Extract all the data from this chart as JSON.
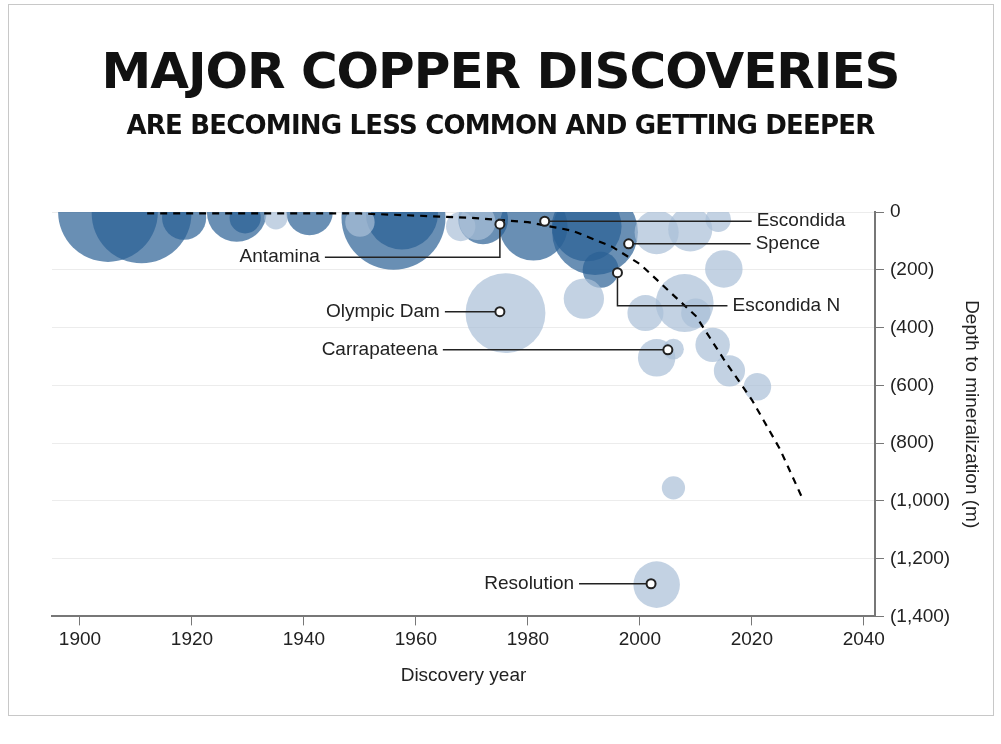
{
  "chart_data": {
    "type": "bubble",
    "title": "MAJOR COPPER DISCOVERIES",
    "subtitle": "ARE BECOMING LESS COMMON AND GETTING DEEPER",
    "xlabel": "Discovery year",
    "ylabel": "Depth to mineralization (m)",
    "xlim": [
      1895,
      2042
    ],
    "xticks": [
      1900,
      1920,
      1940,
      1960,
      1980,
      2000,
      2020,
      2040
    ],
    "ylim": [
      -1400,
      0
    ],
    "yticks": [
      {
        "value": 0,
        "label": "0"
      },
      {
        "value": -200,
        "label": "(200)"
      },
      {
        "value": -400,
        "label": "(400)"
      },
      {
        "value": -600,
        "label": "(600)"
      },
      {
        "value": -800,
        "label": "(800)"
      },
      {
        "value": -1000,
        "label": "(1,000)"
      },
      {
        "value": -1200,
        "label": "(1,200)"
      },
      {
        "value": -1400,
        "label": "(1,400)"
      }
    ],
    "grid": "y",
    "series": [
      {
        "type": "bubble",
        "color": "#2a5f94",
        "x": [
          1905,
          1911,
          1918.6,
          1928,
          1929.5,
          1941,
          1956,
          1957.5,
          1972,
          1981,
          1990.5,
          1992,
          1993
        ],
        "values": [
          0,
          -5,
          -20,
          0,
          -20,
          0,
          -20,
          -5,
          -25,
          -50,
          -50,
          -70,
          -200
        ],
        "sizes": [
          0.92,
          0.92,
          0.18,
          0.33,
          0.09,
          0.2,
          1,
          0.48,
          0.23,
          0.43,
          0.45,
          0.68,
          0.12
        ]
      },
      {
        "type": "bubble",
        "color": "#a9bfd7",
        "x": [
          1935,
          1950,
          1968,
          1971,
          2003,
          2009,
          2014,
          2015,
          1990,
          2001,
          2008,
          1976,
          2003,
          2006,
          2013,
          2016,
          2021,
          2006,
          2003,
          2010
        ],
        "values": [
          -20,
          -35,
          -50,
          -35,
          -70,
          -60,
          -25,
          -197,
          -300,
          -350,
          -315,
          -350,
          -505,
          -475,
          -460,
          -550,
          -605,
          -955,
          -1290,
          -350
        ],
        "sizes": [
          0.05,
          0.08,
          0.08,
          0.12,
          0.18,
          0.18,
          0.06,
          0.13,
          0.15,
          0.12,
          0.31,
          0.59,
          0.13,
          0.04,
          0.11,
          0.09,
          0.07,
          0.05,
          0.2,
          0.08
        ]
      },
      {
        "type": "line",
        "color": "#000000",
        "line_style": "dashed",
        "marker": "none",
        "x": [
          1912,
          1950,
          1970,
          1980,
          1988,
          1995,
          2000,
          2005,
          2010,
          2015,
          2020,
          2025,
          2029
        ],
        "values": [
          -5,
          -5,
          -20,
          -35,
          -65,
          -120,
          -180,
          -270,
          -360,
          -510,
          -650,
          -820,
          -990
        ]
      }
    ],
    "annotations": [
      {
        "text": "Antamina",
        "x": 1975,
        "y": -42
      },
      {
        "text": "Escondida",
        "x": 1983,
        "y": -32
      },
      {
        "text": "Spence",
        "x": 1998,
        "y": -110
      },
      {
        "text": "Escondida N",
        "x": 1996,
        "y": -210
      },
      {
        "text": "Olympic Dam",
        "x": 1975,
        "y": -345
      },
      {
        "text": "Carrapateena",
        "x": 2005,
        "y": -477
      },
      {
        "text": "Resolution",
        "x": 2002,
        "y": -1287
      }
    ]
  }
}
